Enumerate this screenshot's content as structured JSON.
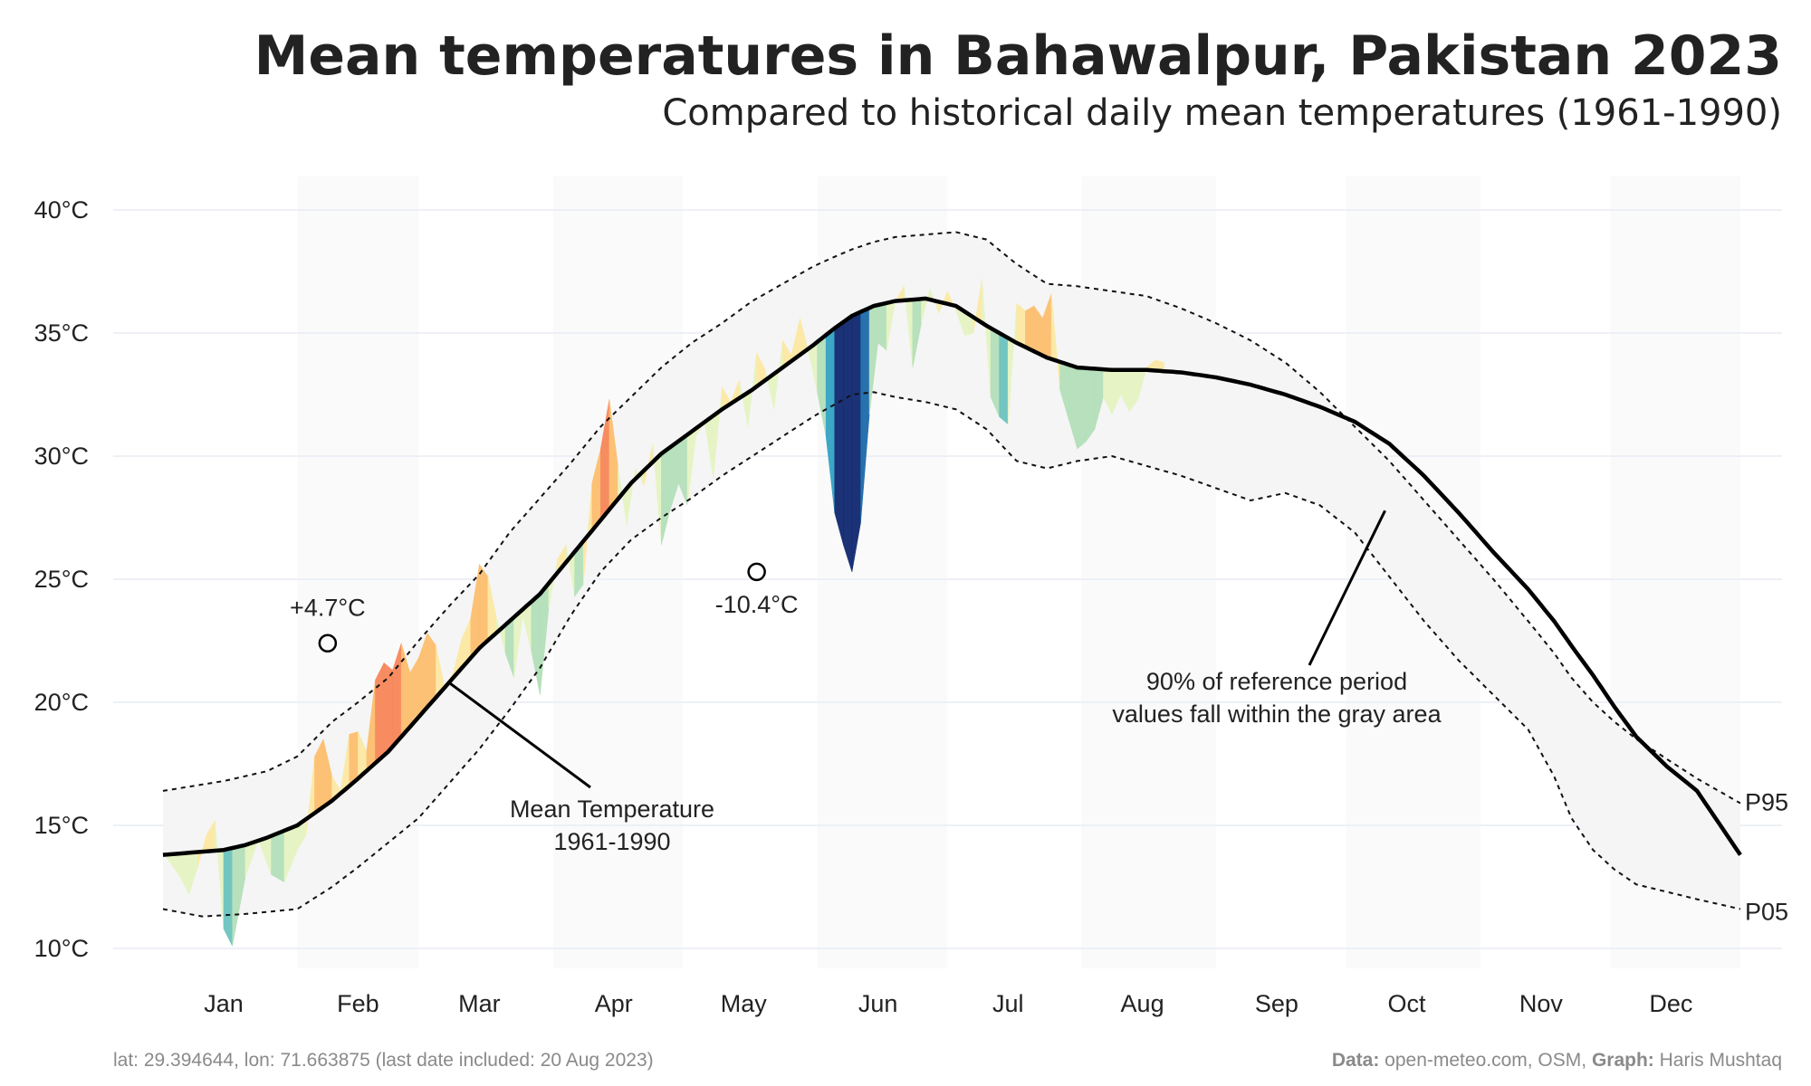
{
  "chart_data": {
    "type": "area",
    "title": "Mean temperatures in Bahawalpur, Pakistan 2023",
    "subtitle": "Compared to historical daily mean temperatures (1961-1990)",
    "xlabel": "",
    "ylabel": "",
    "ylim": [
      10,
      40
    ],
    "y_ticks": [
      "10°C",
      "15°C",
      "20°C",
      "25°C",
      "30°C",
      "35°C",
      "40°C"
    ],
    "y_tick_values": [
      10,
      15,
      20,
      25,
      30,
      35,
      40
    ],
    "x_ticks": [
      "Jan",
      "Feb",
      "Mar",
      "Apr",
      "May",
      "Jun",
      "Jul",
      "Aug",
      "Sep",
      "Oct",
      "Nov",
      "Dec"
    ],
    "x_tick_days": [
      15,
      46,
      74,
      105,
      135,
      166,
      196,
      227,
      258,
      288,
      319,
      349
    ],
    "grid": true,
    "shaded_month_bands": [
      "Feb",
      "Apr",
      "Jun",
      "Aug",
      "Oct",
      "Dec"
    ],
    "series": [
      {
        "name": "Mean Temperature 1961-1990",
        "x": [
          1,
          15,
          20,
          25,
          32,
          40,
          46,
          53,
          60,
          67,
          74,
          81,
          88,
          95,
          102,
          109,
          116,
          123,
          130,
          137,
          144,
          151,
          156,
          160,
          165,
          170,
          177,
          184,
          191,
          198,
          205,
          212,
          220,
          228,
          236,
          244,
          252,
          260,
          268,
          276,
          284,
          292,
          300,
          308,
          316,
          322,
          326,
          331,
          336,
          341,
          348,
          355,
          365
        ],
        "values": [
          13.8,
          14.0,
          14.2,
          14.5,
          15.0,
          16.0,
          16.9,
          18.0,
          19.4,
          20.8,
          22.2,
          23.3,
          24.4,
          25.9,
          27.4,
          28.9,
          30.1,
          31.0,
          31.9,
          32.7,
          33.6,
          34.5,
          35.2,
          35.7,
          36.1,
          36.3,
          36.4,
          36.1,
          35.3,
          34.6,
          34.0,
          33.6,
          33.5,
          33.5,
          33.4,
          33.2,
          32.9,
          32.5,
          32.0,
          31.4,
          30.5,
          29.2,
          27.7,
          26.1,
          24.6,
          23.3,
          22.3,
          21.1,
          19.8,
          18.6,
          17.4,
          16.4,
          13.8
        ]
      },
      {
        "name": "P95",
        "x": [
          1,
          15,
          25,
          32,
          40,
          46,
          53,
          60,
          67,
          74,
          81,
          88,
          95,
          102,
          109,
          116,
          123,
          130,
          137,
          144,
          151,
          156,
          160,
          165,
          170,
          177,
          184,
          191,
          198,
          205,
          212,
          220,
          228,
          236,
          244,
          252,
          260,
          268,
          276,
          284,
          292,
          300,
          308,
          316,
          322,
          326,
          331,
          336,
          341,
          348,
          355,
          365
        ],
        "values": [
          16.4,
          16.8,
          17.2,
          17.8,
          19.2,
          20.0,
          21.0,
          22.5,
          23.9,
          25.2,
          26.9,
          28.3,
          29.7,
          31.2,
          32.4,
          33.6,
          34.6,
          35.4,
          36.3,
          37.0,
          37.7,
          38.1,
          38.4,
          38.7,
          38.9,
          39.0,
          39.1,
          38.8,
          37.8,
          37.0,
          36.9,
          36.7,
          36.5,
          36.0,
          35.4,
          34.7,
          33.8,
          32.6,
          31.2,
          29.8,
          28.2,
          26.6,
          25.0,
          23.3,
          22.0,
          21.0,
          20.0,
          19.2,
          18.5,
          17.7,
          16.9,
          15.9
        ]
      },
      {
        "name": "P05",
        "x": [
          1,
          10,
          20,
          32,
          40,
          46,
          53,
          60,
          67,
          74,
          81,
          88,
          95,
          102,
          109,
          116,
          123,
          130,
          137,
          144,
          151,
          156,
          160,
          165,
          170,
          177,
          184,
          191,
          198,
          205,
          212,
          220,
          228,
          236,
          244,
          252,
          260,
          268,
          276,
          284,
          292,
          300,
          308,
          316,
          322,
          326,
          331,
          336,
          341,
          348,
          355,
          365
        ],
        "values": [
          11.6,
          11.3,
          11.4,
          11.6,
          12.5,
          13.3,
          14.3,
          15.3,
          16.7,
          18.1,
          19.7,
          21.4,
          23.5,
          25.3,
          26.6,
          27.5,
          28.3,
          29.2,
          30.0,
          30.8,
          31.6,
          32.1,
          32.5,
          32.6,
          32.4,
          32.2,
          31.9,
          31.1,
          29.8,
          29.5,
          29.8,
          30.0,
          29.6,
          29.2,
          28.7,
          28.2,
          28.5,
          28.0,
          26.9,
          25.1,
          23.3,
          21.7,
          20.3,
          18.9,
          17.0,
          15.3,
          14.0,
          13.2,
          12.6,
          12.3,
          12.0,
          11.6
        ]
      },
      {
        "name": "2023 daily mean",
        "x": [
          1,
          3,
          5,
          7,
          9,
          11,
          13,
          15,
          17,
          20,
          23,
          26,
          29,
          32,
          34,
          36,
          38,
          40,
          42,
          44,
          46,
          48,
          50,
          52,
          54,
          56,
          58,
          60,
          62,
          64,
          66,
          68,
          70,
          72,
          74,
          76,
          78,
          80,
          82,
          84,
          86,
          88,
          90,
          92,
          94,
          96,
          98,
          100,
          102,
          104,
          106,
          108,
          110,
          112,
          114,
          116,
          118,
          120,
          122,
          124,
          126,
          128,
          130,
          132,
          134,
          136,
          138,
          140,
          142,
          144,
          146,
          148,
          150,
          152,
          154,
          156,
          158,
          160,
          162,
          164,
          166,
          168,
          170,
          172,
          174,
          176,
          178,
          180,
          182,
          184,
          186,
          188,
          190,
          192,
          194,
          196,
          198,
          200,
          202,
          204,
          206,
          208,
          210,
          212,
          214,
          216,
          218,
          220,
          222,
          224,
          226,
          228,
          230,
          232
        ],
        "values": [
          13.9,
          13.4,
          12.9,
          12.2,
          13.3,
          14.6,
          15.2,
          10.8,
          10.1,
          12.9,
          14.4,
          13.0,
          12.7,
          14.0,
          14.6,
          17.8,
          18.5,
          17.0,
          16.4,
          18.7,
          18.8,
          18.0,
          20.9,
          21.6,
          21.3,
          22.4,
          21.2,
          21.8,
          22.8,
          22.3,
          20.6,
          21.2,
          22.6,
          23.4,
          25.6,
          25.1,
          23.4,
          22.0,
          21.0,
          23.5,
          22.1,
          20.3,
          23.8,
          25.8,
          26.4,
          24.3,
          24.8,
          28.9,
          30.3,
          32.3,
          29.6,
          27.2,
          29.5,
          28.8,
          30.5,
          26.4,
          27.8,
          28.9,
          28.0,
          30.8,
          31.4,
          29.1,
          32.8,
          32.2,
          33.1,
          31.2,
          34.2,
          33.5,
          31.9,
          34.7,
          34.1,
          35.6,
          34.2,
          32.6,
          30.8,
          27.7,
          26.4,
          25.3,
          27.3,
          31.7,
          34.6,
          34.3,
          36.3,
          36.9,
          33.6,
          35.4,
          36.8,
          35.8,
          36.7,
          35.9,
          34.9,
          35.0,
          37.2,
          32.4,
          31.6,
          31.3,
          36.2,
          35.9,
          36.1,
          35.6,
          36.6,
          32.7,
          31.5,
          30.3,
          30.6,
          31.1,
          32.4,
          31.7,
          32.5,
          31.8,
          32.3,
          33.6,
          33.9,
          33.8
        ]
      }
    ],
    "annotations": [
      {
        "text": "+4.7°C",
        "x": 39,
        "y": 22.4
      },
      {
        "text": "-10.4°C",
        "x": 138,
        "y": 25.3
      },
      {
        "text": "Mean Temperature",
        "line2": "1961-1990",
        "points_to_day": 67
      },
      {
        "text": "90% of reference period",
        "line2": "values fall within the gray area",
        "points_to_day": 283
      },
      {
        "text": "P95",
        "series": "P95"
      },
      {
        "text": "P05",
        "series": "P05"
      }
    ]
  },
  "caption": {
    "left": "lat: 29.394644, lon: 71.663875 (last date included: 20 Aug 2023)",
    "right_data_label": "Data:",
    "right_data": " open-meteo.com, OSM, ",
    "right_graph_label": "Graph:",
    "right_graph": " Haris Mushtaq"
  }
}
